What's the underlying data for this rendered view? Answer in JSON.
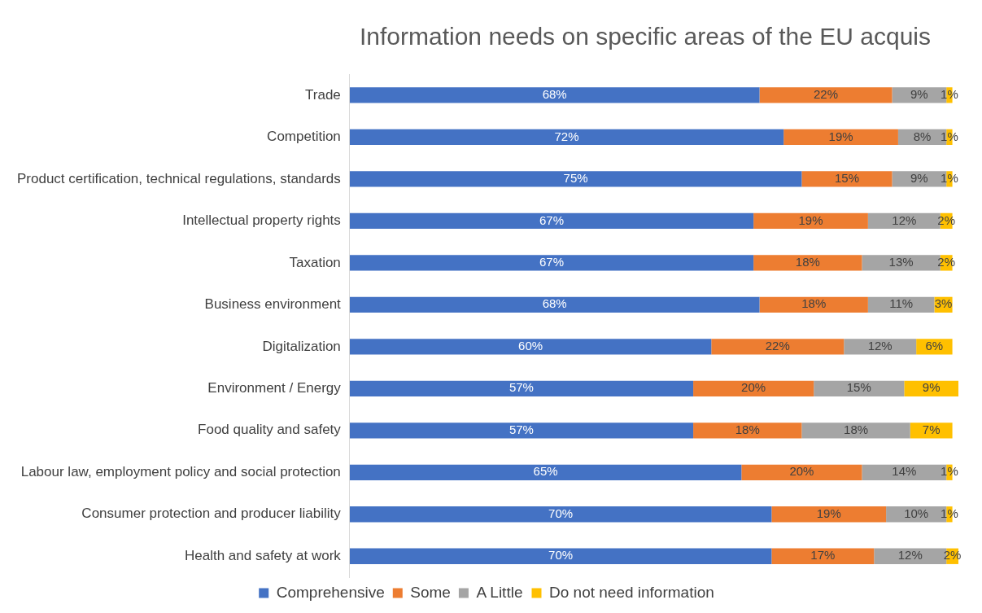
{
  "chart_data": {
    "type": "bar",
    "orientation": "horizontal",
    "stacked": true,
    "title": "Information needs on specific areas of the EU acquis",
    "legend": "bottom",
    "categories": [
      "Trade",
      "Competition",
      "Product certification, technical regulations, standards",
      "Intellectual property rights",
      "Taxation",
      "Business environment",
      "Digitalization",
      "Environment / Energy",
      "Food quality and safety",
      "Labour law, employment policy and social protection",
      "Consumer protection and producer liability",
      "Health and safety at work"
    ],
    "series": [
      {
        "name": "Comprehensive",
        "color": "#4472c4",
        "values": [
          68,
          72,
          75,
          67,
          67,
          68,
          60,
          57,
          57,
          65,
          70,
          70
        ],
        "value_labels": [
          "68%",
          "72%",
          "75%",
          "67%",
          "67%",
          "68%",
          "60%",
          "57%",
          "57%",
          "65%",
          "70%",
          "70%"
        ]
      },
      {
        "name": "Some",
        "color": "#ed7d31",
        "values": [
          22,
          19,
          15,
          19,
          18,
          18,
          22,
          20,
          18,
          20,
          19,
          17
        ],
        "value_labels": [
          "22%",
          "19%",
          "15%",
          "19%",
          "18%",
          "18%",
          "22%",
          "20%",
          "18%",
          "20%",
          "19%",
          "17%"
        ]
      },
      {
        "name": "A Little",
        "color": "#a5a5a5",
        "values": [
          9,
          8,
          9,
          12,
          13,
          11,
          12,
          15,
          18,
          14,
          10,
          12
        ],
        "value_labels": [
          "9%",
          "8%",
          "9%",
          "12%",
          "13%",
          "11%",
          "12%",
          "15%",
          "18%",
          "14%",
          "10%",
          "12%"
        ]
      },
      {
        "name": "Do not need information",
        "color": "#ffc000",
        "values": [
          1,
          1,
          1,
          2,
          2,
          3,
          6,
          9,
          7,
          1,
          1,
          2
        ],
        "value_labels": [
          "1%",
          "1%",
          "1%",
          "2%",
          "2%",
          "3%",
          "6%",
          "9%",
          "7%",
          "1%",
          "1%",
          "2%"
        ]
      }
    ]
  }
}
